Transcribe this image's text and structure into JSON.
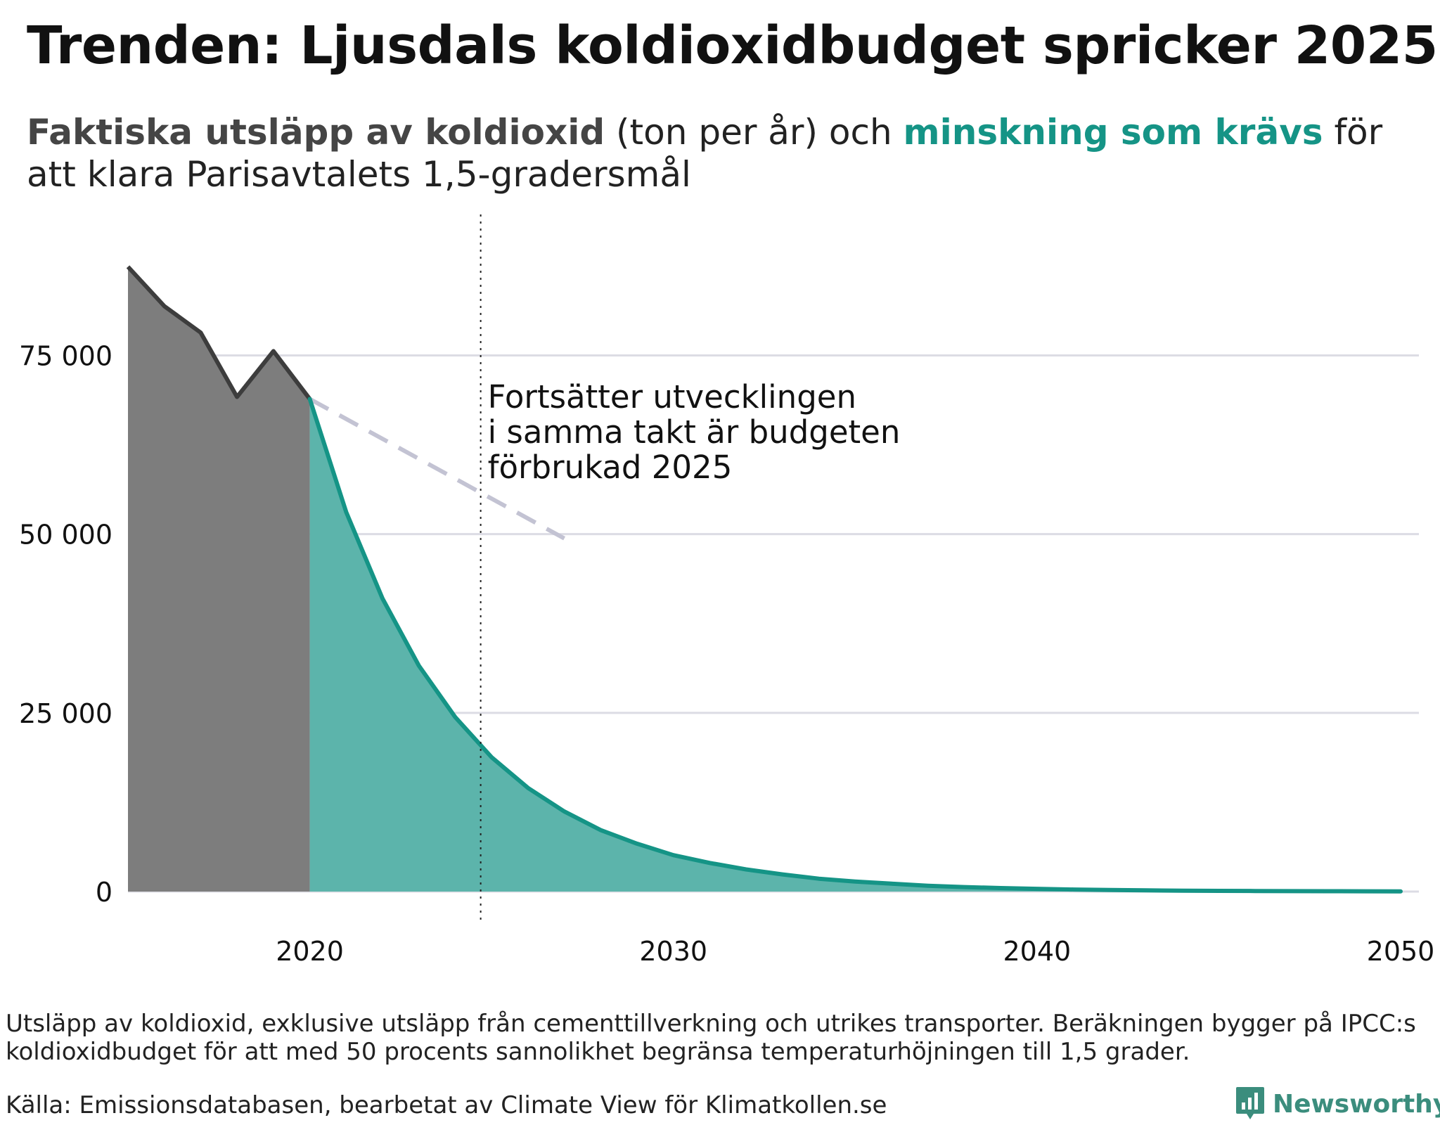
{
  "title": "Trenden: Ljusdals koldioxidbudget spricker 2025",
  "subtitle": {
    "actual_label": "Faktiska utsläpp av koldioxid",
    "unit_text": " (ton per år) och ",
    "required_label": "minskning som krävs",
    "rest_text": " för att klara Parisavtalets 1,5-gradersmål"
  },
  "colors": {
    "actual_fill": "#7d7d7d",
    "actual_line": "#3d3d3d",
    "required_fill": "#5cb4ab",
    "required_line": "#159486",
    "trend_dash": "#c3c3d3",
    "grid": "#dcdce4",
    "marker": "#222222"
  },
  "annotation": [
    "Fortsätter utvecklingen",
    "i samma takt är budgeten",
    "förbrukad 2025"
  ],
  "footnote": "Utsläpp av koldioxid, exklusive utsläpp från cementtillverkning och utrikes transporter. Beräkningen bygger på IPCC:s koldioxidbudget för att med 50 procents sannolikhet begränsa temperaturhöjningen till 1,5 grader.",
  "source": "Källa: Emissionsdatabasen, bearbetat av Climate View för Klimatkollen.se",
  "brand": {
    "name": "Newsworthy",
    "icon": "bar-chart-speech-icon"
  },
  "chart_data": {
    "type": "area",
    "title": "Trenden: Ljusdals koldioxidbudget spricker 2025",
    "ylabel": "ton per år",
    "xlim": [
      2015,
      2050
    ],
    "ylim": [
      0,
      90000
    ],
    "y_ticks": [
      0,
      25000,
      50000,
      75000
    ],
    "y_tick_labels": [
      "0",
      "25 000",
      "50 000",
      "75 000"
    ],
    "x_ticks": [
      2020,
      2030,
      2040,
      2050
    ],
    "x_tick_labels": [
      "2020",
      "2030",
      "2040",
      "2050"
    ],
    "grid": true,
    "vline": 2024.7,
    "series": [
      {
        "name": "Faktiska utsläpp av koldioxid",
        "x": [
          2015,
          2016,
          2017,
          2018,
          2019,
          2020
        ],
        "values": [
          87400,
          81900,
          78200,
          69200,
          75600,
          68900
        ]
      },
      {
        "name": "Minskning som krävs",
        "x": [
          2020,
          2021,
          2022,
          2023,
          2024,
          2025,
          2026,
          2027,
          2028,
          2029,
          2030,
          2031,
          2032,
          2033,
          2034,
          2035,
          2036,
          2037,
          2038,
          2039,
          2040,
          2041,
          2042,
          2043,
          2044,
          2045,
          2046,
          2047,
          2048,
          2049,
          2050
        ],
        "values": [
          68900,
          53100,
          41000,
          31600,
          24400,
          18800,
          14500,
          11200,
          8600,
          6700,
          5100,
          4000,
          3100,
          2400,
          1800,
          1400,
          1100,
          820,
          630,
          490,
          380,
          290,
          220,
          170,
          130,
          100,
          80,
          60,
          50,
          40,
          30
        ]
      },
      {
        "name": "Trend",
        "x": [
          2020,
          2027
        ],
        "values": [
          68900,
          49400
        ]
      }
    ]
  }
}
